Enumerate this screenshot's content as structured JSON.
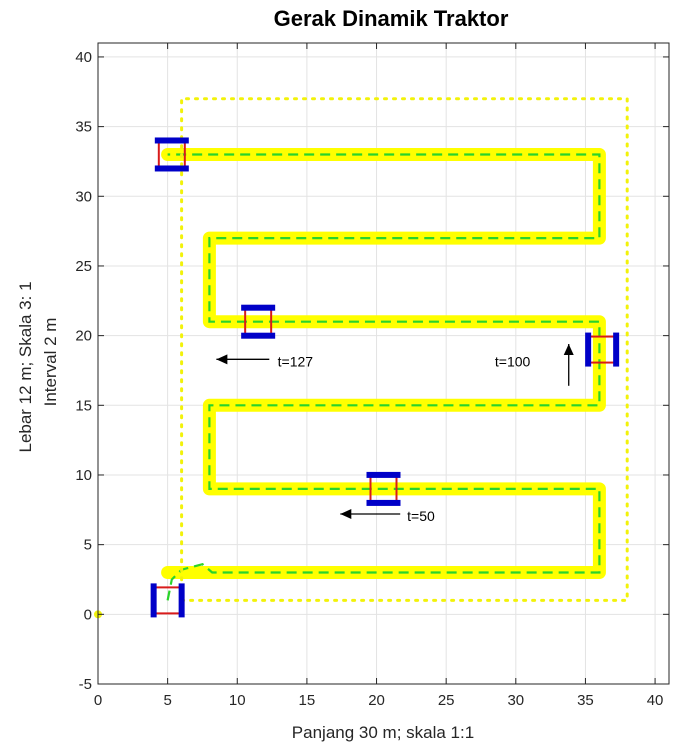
{
  "chart_data": {
    "type": "line",
    "title": "Gerak Dinamik Traktor",
    "xlabel": "Panjang 30 m; skala 1:1",
    "ylabel": [
      "Lebar 12 m; Skala 3: 1",
      "Interval 2 m"
    ],
    "xlim": [
      0,
      41
    ],
    "ylim": [
      -5,
      41
    ],
    "xticks": [
      0,
      5,
      10,
      15,
      20,
      25,
      30,
      35,
      40
    ],
    "yticks": [
      -5,
      0,
      5,
      10,
      15,
      20,
      25,
      30,
      35,
      40
    ],
    "grid": true,
    "colors": {
      "path": "#ffff00",
      "dashed": "#2ad42a",
      "boundary": "#f2f20a",
      "wheel": "#0000c8",
      "chassis": "#d81b1b",
      "arrow": "#000000"
    },
    "series": [
      {
        "style": "thick-solid",
        "x": [
          5,
          8,
          36,
          36,
          8,
          8,
          36,
          36,
          8,
          8,
          36,
          36,
          5
        ],
        "y": [
          3,
          3,
          3,
          9,
          9,
          15,
          15,
          21,
          21,
          27,
          27,
          33,
          33
        ]
      },
      {
        "style": "dashed",
        "x": [
          5,
          5.3,
          6,
          7.5,
          8.2,
          36,
          36,
          8,
          8,
          36,
          36,
          8,
          8,
          36,
          36,
          5
        ],
        "y": [
          1,
          2.5,
          3.2,
          3.6,
          3,
          3,
          9,
          9,
          15,
          15,
          21,
          21,
          27,
          27,
          33,
          33
        ]
      },
      {
        "style": "dotted",
        "x": [
          6,
          38,
          38,
          6,
          6
        ],
        "y": [
          1,
          1,
          37,
          37,
          1
        ]
      },
      {
        "style": "dotted",
        "x": [
          0
        ],
        "y": [
          0
        ]
      }
    ],
    "tractors": [
      {
        "x": 5,
        "y": 1,
        "orientation": "vertical"
      },
      {
        "x": 20.5,
        "y": 9,
        "orientation": "horizontal"
      },
      {
        "x": 36.2,
        "y": 19,
        "orientation": "vertical"
      },
      {
        "x": 11.5,
        "y": 21,
        "orientation": "horizontal"
      },
      {
        "x": 5.3,
        "y": 33,
        "orientation": "horizontal"
      }
    ],
    "annotations": [
      {
        "text": "t=50",
        "x": 22.2,
        "y": 6.7,
        "arrow_from": [
          21.7,
          7.2
        ],
        "arrow_to": [
          17.4,
          7.2
        ]
      },
      {
        "text": "t=100",
        "x": 28.5,
        "y": 17.8,
        "arrow_from": [
          33.8,
          16.4
        ],
        "arrow_to": [
          33.8,
          19.4
        ]
      },
      {
        "text": "t=127",
        "x": 12.9,
        "y": 17.8,
        "arrow_from": [
          12.3,
          18.3
        ],
        "arrow_to": [
          8.5,
          18.3
        ]
      }
    ]
  }
}
